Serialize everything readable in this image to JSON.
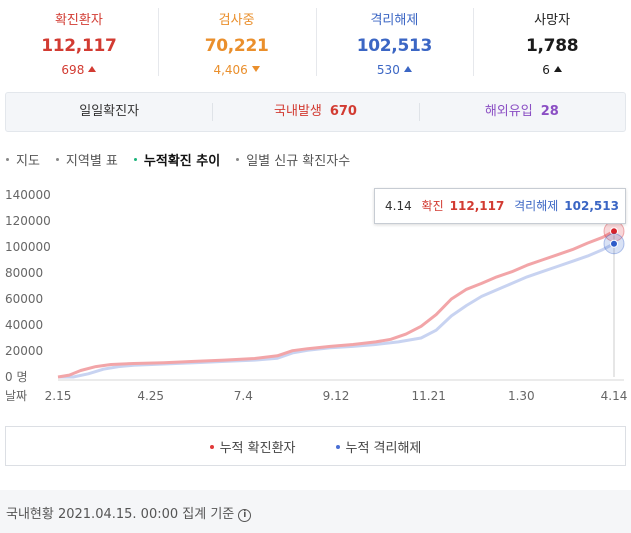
{
  "stats": [
    {
      "label": "확진환자",
      "value": "112,117",
      "delta": "698",
      "dir": "up",
      "color_class": "c-red"
    },
    {
      "label": "검사중",
      "value": "70,221",
      "delta": "4,406",
      "dir": "down",
      "color_class": "c-orange"
    },
    {
      "label": "격리해제",
      "value": "102,513",
      "delta": "530",
      "dir": "up",
      "color_class": "c-blue"
    },
    {
      "label": "사망자",
      "value": "1,788",
      "delta": "6",
      "dir": "up",
      "color_class": "c-black"
    }
  ],
  "daily": {
    "title": "일일확진자",
    "domestic_label": "국내발생",
    "domestic_value": "670",
    "overseas_label": "해외유입",
    "overseas_value": "28"
  },
  "tabs": [
    {
      "label": "지도",
      "active": false
    },
    {
      "label": "지역별 표",
      "active": false
    },
    {
      "label": "누적확진 추이",
      "active": true
    },
    {
      "label": "일별 신규 확진자수",
      "active": false
    }
  ],
  "tooltip": {
    "date": "4.14",
    "confirmed_label": "확진",
    "confirmed_value": "112,117",
    "released_label": "격리해제",
    "released_value": "102,513"
  },
  "chart_data": {
    "type": "line",
    "y_ticks": [
      "140000",
      "120000",
      "100000",
      "80000",
      "60000",
      "40000",
      "20000",
      "0 명"
    ],
    "ylim": [
      0,
      140000
    ],
    "xlabel": "날짜",
    "x_ticks": [
      "2.15",
      "4.25",
      "7.4",
      "9.12",
      "11.21",
      "1.30",
      "4.14"
    ],
    "series": [
      {
        "name": "누적 확진환자",
        "color": "#f2a5a8",
        "points": [
          [
            0,
            0
          ],
          [
            3,
            1500
          ],
          [
            6,
            5000
          ],
          [
            10,
            8000
          ],
          [
            14,
            9600
          ],
          [
            20,
            10400
          ],
          [
            28,
            11000
          ],
          [
            36,
            12000
          ],
          [
            44,
            13000
          ],
          [
            52,
            14200
          ],
          [
            58,
            16300
          ],
          [
            62,
            20200
          ],
          [
            66,
            21800
          ],
          [
            72,
            23500
          ],
          [
            78,
            25000
          ],
          [
            84,
            27000
          ],
          [
            88,
            29000
          ],
          [
            92,
            33000
          ],
          [
            96,
            39000
          ],
          [
            100,
            48000
          ],
          [
            104,
            60000
          ],
          [
            108,
            67500
          ],
          [
            112,
            72000
          ],
          [
            116,
            77000
          ],
          [
            120,
            81000
          ],
          [
            124,
            86000
          ],
          [
            128,
            90000
          ],
          [
            132,
            94000
          ],
          [
            136,
            98000
          ],
          [
            140,
            103000
          ],
          [
            144,
            107500
          ],
          [
            147,
            112117
          ]
        ]
      },
      {
        "name": "누적 격리해제",
        "color": "#c8d3f1",
        "points": [
          [
            0,
            0
          ],
          [
            4,
            0
          ],
          [
            8,
            2500
          ],
          [
            12,
            6000
          ],
          [
            16,
            8000
          ],
          [
            20,
            9000
          ],
          [
            28,
            10000
          ],
          [
            36,
            11000
          ],
          [
            44,
            12000
          ],
          [
            52,
            13000
          ],
          [
            58,
            14500
          ],
          [
            62,
            18500
          ],
          [
            66,
            20500
          ],
          [
            72,
            22500
          ],
          [
            78,
            23500
          ],
          [
            84,
            25000
          ],
          [
            90,
            27000
          ],
          [
            96,
            30000
          ],
          [
            100,
            36000
          ],
          [
            104,
            47000
          ],
          [
            108,
            55000
          ],
          [
            112,
            62000
          ],
          [
            116,
            67000
          ],
          [
            120,
            72000
          ],
          [
            124,
            77000
          ],
          [
            128,
            81000
          ],
          [
            132,
            85000
          ],
          [
            136,
            89000
          ],
          [
            140,
            93000
          ],
          [
            144,
            98000
          ],
          [
            147,
            102513
          ]
        ]
      }
    ],
    "markers": [
      {
        "series": "누적 확진환자",
        "value": 112117,
        "color": "#d6232c"
      },
      {
        "series": "누적 격리해제",
        "value": 102513,
        "color": "#2f5cc9"
      }
    ]
  },
  "legend": [
    {
      "label": "누적 확진환자",
      "color": "#e13a3a"
    },
    {
      "label": "누적 격리해제",
      "color": "#4a6fd4"
    }
  ],
  "footer": {
    "text": "국내현황 2021.04.15. 00:00 집계 기준",
    "info_icon": "info-icon"
  }
}
